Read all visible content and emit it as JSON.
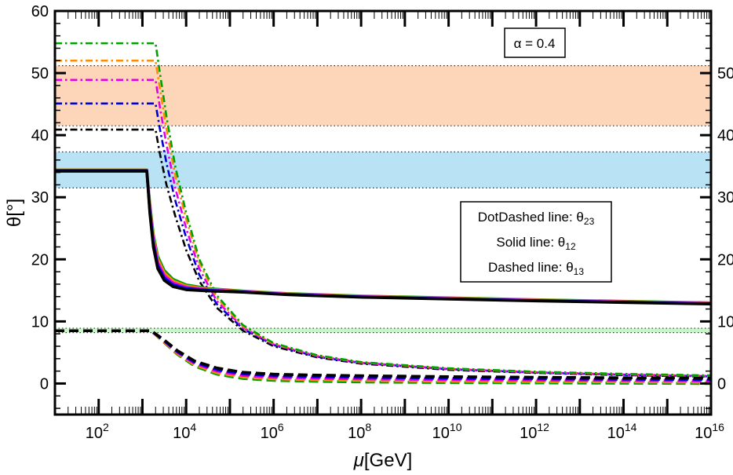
{
  "chart_data": {
    "type": "line",
    "xscale": "log10",
    "xlim_log10": [
      1,
      16
    ],
    "ylim": [
      -5,
      60
    ],
    "ylabel": "θ[°]",
    "xlabel_symbol": "μ",
    "xlabel_unit": "[GeV]",
    "annotation": "α = 0.4",
    "xticks_log10": [
      2,
      4,
      6,
      8,
      10,
      12,
      14,
      16
    ],
    "xtick_base": "10",
    "yticks": [
      0,
      10,
      20,
      30,
      40,
      50,
      60
    ],
    "yticks_right": [
      0,
      10,
      20,
      30,
      40,
      50
    ],
    "legend": [
      {
        "text": "DotDashed line: θ",
        "sub": "23"
      },
      {
        "text": "Solid line: θ",
        "sub": "12"
      },
      {
        "text": "Dashed line: θ",
        "sub": "13"
      }
    ],
    "bands": [
      {
        "name": "theta23-band",
        "ymin": 41.5,
        "ymax": 51.2,
        "color": "#fdd5b8"
      },
      {
        "name": "theta12-band",
        "ymin": 31.5,
        "ymax": 37.3,
        "color": "#b9e3f5"
      },
      {
        "name": "theta13-band",
        "ymin": 8.2,
        "ymax": 8.9,
        "color": "#c8f5c8"
      }
    ],
    "colors": [
      "#000000",
      "#0000d0",
      "#e400e4",
      "#ff8c00",
      "#00a000"
    ],
    "series": [
      {
        "name": "theta23-black",
        "style": "dotdash",
        "color": "#000000",
        "x": [
          1,
          3.3,
          3.4,
          3.55,
          3.75,
          4.0,
          4.3,
          4.7,
          5.3,
          6,
          7,
          8,
          10,
          12,
          14,
          16
        ],
        "y": [
          40.9,
          40.9,
          37,
          32,
          27,
          21.5,
          16.5,
          12.2,
          8.5,
          6.0,
          4.2,
          3.2,
          2.2,
          1.7,
          1.35,
          1.1
        ]
      },
      {
        "name": "theta23-blue",
        "style": "dotdash",
        "color": "#0000d0",
        "x": [
          1,
          3.3,
          3.4,
          3.55,
          3.75,
          4.0,
          4.3,
          4.7,
          5.3,
          6,
          7,
          8,
          10,
          12,
          14,
          16
        ],
        "y": [
          45.1,
          45.1,
          41,
          35.5,
          29.5,
          23.5,
          17.5,
          12.8,
          8.8,
          6.2,
          4.3,
          3.3,
          2.3,
          1.75,
          1.4,
          1.15
        ]
      },
      {
        "name": "theta23-magenta",
        "style": "dotdash",
        "color": "#e400e4",
        "x": [
          1,
          3.3,
          3.4,
          3.55,
          3.75,
          4.0,
          4.3,
          4.7,
          5.3,
          6,
          7,
          8,
          10,
          12,
          14,
          16
        ],
        "y": [
          48.9,
          48.9,
          44.5,
          38.5,
          31.5,
          25,
          18.5,
          13.3,
          9.0,
          6.3,
          4.4,
          3.35,
          2.35,
          1.8,
          1.45,
          1.2
        ]
      },
      {
        "name": "theta23-orange",
        "style": "dotdash",
        "color": "#ff8c00",
        "x": [
          1,
          3.3,
          3.4,
          3.55,
          3.75,
          4.0,
          4.3,
          4.7,
          5.3,
          6,
          7,
          8,
          10,
          12,
          14,
          16
        ],
        "y": [
          52.0,
          52.0,
          47.5,
          41,
          33.5,
          26.5,
          19.5,
          13.8,
          9.2,
          6.4,
          4.5,
          3.4,
          2.4,
          1.85,
          1.5,
          1.25
        ]
      },
      {
        "name": "theta23-green",
        "style": "dotdash",
        "color": "#00a000",
        "x": [
          1,
          3.3,
          3.4,
          3.55,
          3.75,
          4.0,
          4.3,
          4.7,
          5.3,
          6,
          7,
          8,
          10,
          12,
          14,
          16
        ],
        "y": [
          54.8,
          54.8,
          50,
          43,
          35,
          27.5,
          20,
          14.2,
          9.4,
          6.5,
          4.55,
          3.45,
          2.45,
          1.9,
          1.55,
          1.3
        ]
      },
      {
        "name": "theta12-green",
        "style": "solid",
        "color": "#00a000",
        "x": [
          1,
          3.1,
          3.17,
          3.25,
          3.35,
          3.5,
          3.7,
          4.0,
          4.5,
          5.3,
          6.3,
          8,
          10,
          12,
          14,
          16
        ],
        "y": [
          34.4,
          34.4,
          29,
          24,
          20.5,
          18.2,
          16.8,
          15.9,
          15.3,
          14.9,
          14.5,
          14.1,
          13.8,
          13.5,
          13.25,
          13.0
        ]
      },
      {
        "name": "theta12-orange",
        "style": "solid",
        "color": "#ff8c00",
        "x": [
          1,
          3.1,
          3.17,
          3.25,
          3.35,
          3.5,
          3.7,
          4.0,
          4.5,
          5.3,
          6.3,
          8,
          10,
          12,
          14,
          16
        ],
        "y": [
          34.4,
          34.4,
          28.6,
          23.5,
          20,
          17.8,
          16.5,
          15.7,
          15.2,
          14.85,
          14.45,
          14.05,
          13.75,
          13.45,
          13.2,
          12.95
        ]
      },
      {
        "name": "theta12-magenta",
        "style": "solid",
        "color": "#e400e4",
        "x": [
          1,
          3.1,
          3.17,
          3.25,
          3.35,
          3.5,
          3.7,
          4.0,
          4.5,
          5.3,
          6.3,
          8,
          10,
          12,
          14,
          16
        ],
        "y": [
          34.3,
          34.3,
          28.2,
          23,
          19.5,
          17.4,
          16.2,
          15.5,
          15.1,
          14.8,
          14.4,
          14.0,
          13.7,
          13.4,
          13.15,
          12.9
        ]
      },
      {
        "name": "theta12-blue",
        "style": "solid",
        "color": "#0000d0",
        "x": [
          1,
          3.1,
          3.17,
          3.25,
          3.35,
          3.5,
          3.7,
          4.0,
          4.5,
          5.3,
          6.3,
          8,
          10,
          12,
          14,
          16
        ],
        "y": [
          34.3,
          34.3,
          27.8,
          22.5,
          19,
          17.0,
          15.9,
          15.3,
          15.0,
          14.75,
          14.35,
          13.95,
          13.65,
          13.35,
          13.1,
          12.85
        ]
      },
      {
        "name": "theta12-black",
        "style": "solid",
        "color": "#000000",
        "x": [
          1,
          3.1,
          3.17,
          3.25,
          3.35,
          3.5,
          3.7,
          4.0,
          4.5,
          5.3,
          6.3,
          8,
          10,
          12,
          14,
          16
        ],
        "y": [
          34.2,
          34.2,
          27.4,
          22,
          18.5,
          16.6,
          15.6,
          15.1,
          14.9,
          14.7,
          14.3,
          13.9,
          13.6,
          13.3,
          13.05,
          12.8
        ]
      },
      {
        "name": "theta13-green",
        "style": "dashed",
        "color": "#00a000",
        "x": [
          1,
          3.2,
          3.5,
          3.8,
          4.2,
          4.7,
          5.3,
          6,
          7,
          8,
          10,
          12,
          14,
          16
        ],
        "y": [
          8.5,
          8.5,
          6.6,
          4.7,
          2.8,
          1.5,
          0.8,
          0.5,
          0.35,
          0.25,
          0.15,
          0.1,
          0.05,
          0.0
        ]
      },
      {
        "name": "theta13-orange",
        "style": "dashed",
        "color": "#ff8c00",
        "x": [
          1,
          3.2,
          3.5,
          3.8,
          4.2,
          4.7,
          5.3,
          6,
          7,
          8,
          10,
          12,
          14,
          16
        ],
        "y": [
          8.5,
          8.5,
          6.7,
          4.85,
          3.0,
          1.75,
          1.05,
          0.75,
          0.6,
          0.5,
          0.4,
          0.33,
          0.27,
          0.22
        ]
      },
      {
        "name": "theta13-magenta",
        "style": "dashed",
        "color": "#e400e4",
        "x": [
          1,
          3.2,
          3.5,
          3.8,
          4.2,
          4.7,
          5.3,
          6,
          7,
          8,
          10,
          12,
          14,
          16
        ],
        "y": [
          8.5,
          8.5,
          6.8,
          5.0,
          3.2,
          2.0,
          1.3,
          1.0,
          0.85,
          0.75,
          0.62,
          0.55,
          0.48,
          0.42
        ]
      },
      {
        "name": "theta13-blue",
        "style": "dashed",
        "color": "#0000d0",
        "x": [
          1,
          3.2,
          3.5,
          3.8,
          4.2,
          4.7,
          5.3,
          6,
          7,
          8,
          10,
          12,
          14,
          16
        ],
        "y": [
          8.5,
          8.5,
          6.9,
          5.15,
          3.4,
          2.25,
          1.55,
          1.25,
          1.1,
          1.0,
          0.85,
          0.77,
          0.7,
          0.63
        ]
      },
      {
        "name": "theta13-black",
        "style": "dashed",
        "color": "#000000",
        "x": [
          1,
          3.2,
          3.5,
          3.8,
          4.2,
          4.7,
          5.3,
          6,
          7,
          8,
          10,
          12,
          14,
          16
        ],
        "y": [
          8.5,
          8.5,
          7.0,
          5.3,
          3.6,
          2.5,
          1.8,
          1.5,
          1.35,
          1.25,
          1.1,
          1.0,
          0.92,
          0.85
        ]
      }
    ]
  }
}
